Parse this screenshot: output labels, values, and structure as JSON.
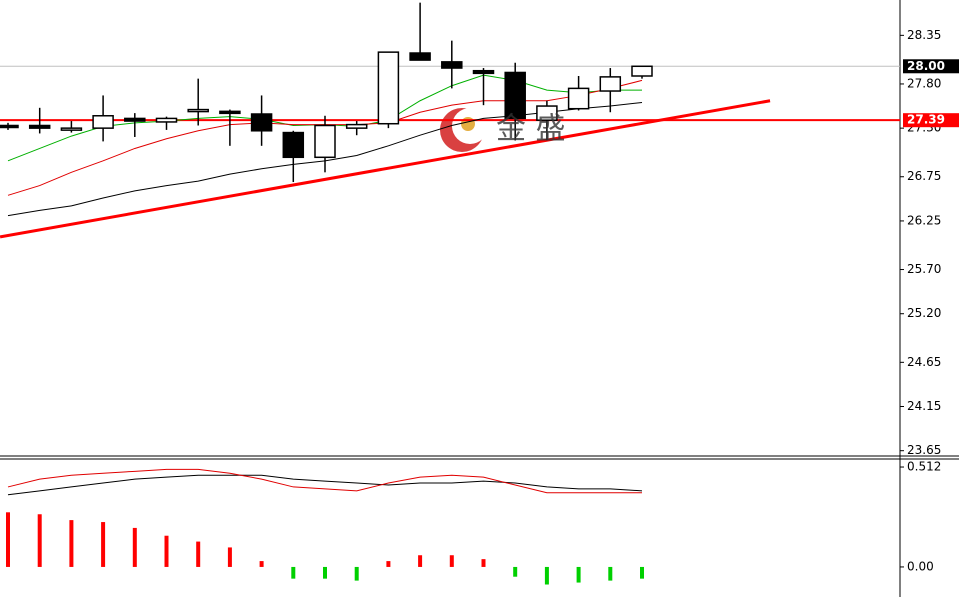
{
  "chart_data": [
    {
      "type": "candlestick",
      "open": [
        27.33,
        27.33,
        27.29,
        27.3,
        27.41,
        27.37,
        27.5,
        27.49,
        27.46,
        27.25,
        26.97,
        27.3,
        27.35,
        28.15,
        28.05,
        27.95,
        27.93,
        27.39,
        27.52,
        27.72,
        27.89
      ],
      "high": [
        27.36,
        27.53,
        27.38,
        27.67,
        27.47,
        27.43,
        27.86,
        27.51,
        27.67,
        27.27,
        27.44,
        27.38,
        28.16,
        28.72,
        28.29,
        27.98,
        28.04,
        27.61,
        27.89,
        27.98,
        28.0
      ],
      "low": [
        27.28,
        27.24,
        27.25,
        27.15,
        27.2,
        27.28,
        27.33,
        27.1,
        27.1,
        26.69,
        26.8,
        27.22,
        27.3,
        28.07,
        27.75,
        27.56,
        27.16,
        27.16,
        27.5,
        27.48,
        27.86
      ],
      "close": [
        27.32,
        27.3,
        27.3,
        27.44,
        27.38,
        27.41,
        27.51,
        27.48,
        27.27,
        26.97,
        27.33,
        27.34,
        28.16,
        28.07,
        27.98,
        27.92,
        27.41,
        27.55,
        27.75,
        27.88,
        28.0
      ],
      "series": [
        {
          "color": "#00b000",
          "values": [
            26.93,
            27.07,
            27.21,
            27.32,
            27.36,
            27.38,
            27.41,
            27.43,
            27.4,
            27.33,
            27.34,
            27.32,
            27.39,
            27.61,
            27.78,
            27.9,
            27.84,
            27.73,
            27.7,
            27.73,
            27.73
          ]
        },
        {
          "color": "#e00000",
          "values": [
            26.54,
            26.65,
            26.8,
            26.93,
            27.07,
            27.18,
            27.27,
            27.34,
            27.36,
            27.34,
            27.34,
            27.34,
            27.36,
            27.48,
            27.56,
            27.61,
            27.61,
            27.61,
            27.67,
            27.75,
            27.84
          ]
        },
        {
          "color": "#000000",
          "values": [
            26.31,
            26.37,
            26.42,
            26.51,
            26.59,
            26.65,
            26.7,
            26.78,
            26.84,
            26.89,
            26.93,
            26.99,
            27.1,
            27.22,
            27.33,
            27.41,
            27.44,
            27.48,
            27.52,
            27.55,
            27.59
          ]
        }
      ],
      "trend_line": {
        "x": [
          -0.25,
          24.04
        ],
        "values": [
          26.07,
          27.61
        ],
        "color": "#ff0000"
      },
      "price_tags": [
        {
          "value": 28,
          "label": "28.00",
          "color": "#000000",
          "line_color": "#c0c0c0"
        },
        {
          "value": 27.39,
          "label": "27.39",
          "color": "#ff0000",
          "line_color": "#ff0000"
        }
      ],
      "ylim": [
        23.59,
        28.75
      ],
      "yticks": [
        28.35,
        {
          "value": 27.8,
          "label": "27.80"
        },
        {
          "value": 27.3,
          "label": "27.30"
        },
        26.75,
        26.25,
        {
          "value": 25.7,
          "label": "25.70"
        },
        {
          "value": 25.2,
          "label": "25.20"
        },
        24.65,
        24.15,
        23.65
      ],
      "watermark": "金 盛"
    },
    {
      "type": "macd",
      "values": [
        0.28,
        0.27,
        0.24,
        0.23,
        0.2,
        0.16,
        0.13,
        0.1,
        0.03,
        -0.06,
        -0.06,
        -0.07,
        0.03,
        0.06,
        0.06,
        0.04,
        -0.05,
        -0.09,
        -0.08,
        -0.07,
        -0.06
      ],
      "positive_color": "#ff0000",
      "negative_color": "#00d000",
      "series": [
        {
          "color": "#000000",
          "values": [
            0.37,
            0.39,
            0.41,
            0.43,
            0.45,
            0.46,
            0.47,
            0.47,
            0.47,
            0.45,
            0.44,
            0.43,
            0.42,
            0.43,
            0.43,
            0.44,
            0.43,
            0.41,
            0.4,
            0.4,
            0.39
          ]
        },
        {
          "color": "#e00000",
          "values": [
            0.41,
            0.45,
            0.47,
            0.48,
            0.49,
            0.5,
            0.5,
            0.48,
            0.45,
            0.41,
            0.4,
            0.39,
            0.43,
            0.46,
            0.47,
            0.46,
            0.42,
            0.38,
            0.38,
            0.38,
            0.38
          ]
        }
      ],
      "ylim": [
        -0.154,
        0.548
      ],
      "yticks": [
        0.512,
        {
          "value": 0,
          "label": "0.00"
        }
      ]
    }
  ]
}
